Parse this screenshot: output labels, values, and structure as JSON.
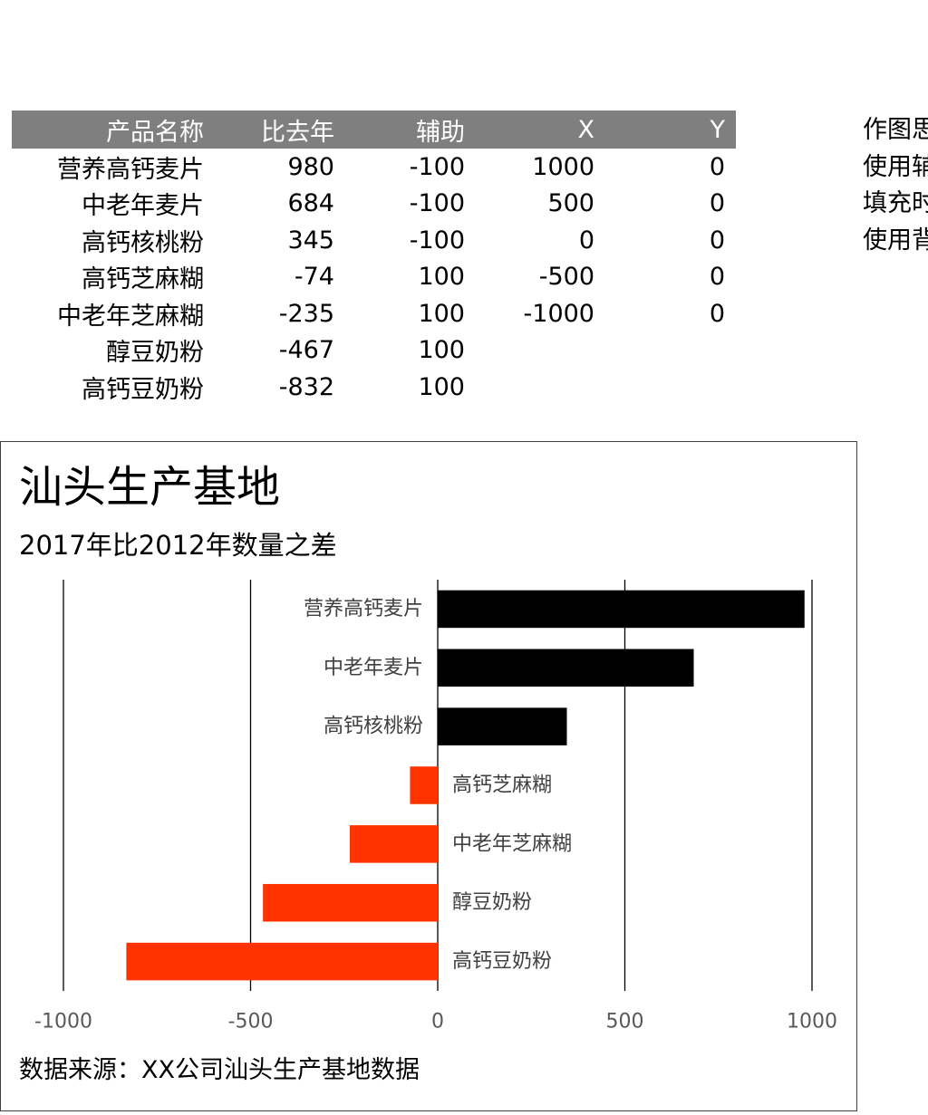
{
  "table": {
    "headers": [
      "产品名称",
      "比去年",
      "辅助",
      "X",
      "Y"
    ],
    "rows": [
      [
        "营养高钙麦片",
        "980",
        "-100",
        "1000",
        "0"
      ],
      [
        "中老年麦片",
        "684",
        "-100",
        "500",
        "0"
      ],
      [
        "高钙核桃粉",
        "345",
        "-100",
        "0",
        "0"
      ],
      [
        "高钙芝麻糊",
        "-74",
        "100",
        "-500",
        "0"
      ],
      [
        "中老年芝麻糊",
        "-235",
        "100",
        "-1000",
        "0"
      ],
      [
        "醇豆奶粉",
        "-467",
        "100",
        "",
        ""
      ],
      [
        "高钙豆奶粉",
        "-832",
        "100",
        "",
        ""
      ]
    ]
  },
  "side_notes": [
    "作图思",
    "使用辅",
    "填充时",
    "使用背"
  ],
  "chart_data": {
    "type": "bar",
    "orientation": "horizontal",
    "title": "汕头生产基地",
    "subtitle": "2017年比2012年数量之差",
    "source": "数据来源：XX公司汕头生产基地数据",
    "categories": [
      "营养高钙麦片",
      "中老年麦片",
      "高钙核桃粉",
      "高钙芝麻糊",
      "中老年芝麻糊",
      "醇豆奶粉",
      "高钙豆奶粉"
    ],
    "values": [
      980,
      684,
      345,
      -74,
      -235,
      -467,
      -832
    ],
    "xlim": [
      -1000,
      1000
    ],
    "xticks": [
      -1000,
      -500,
      0,
      500,
      1000
    ],
    "xtick_labels": [
      "-1000",
      "-500",
      "0",
      "500",
      "1000"
    ],
    "grid": "vertical",
    "colors": {
      "positive": "#000000",
      "negative": "#ff3300",
      "grid": "#000000"
    }
  }
}
